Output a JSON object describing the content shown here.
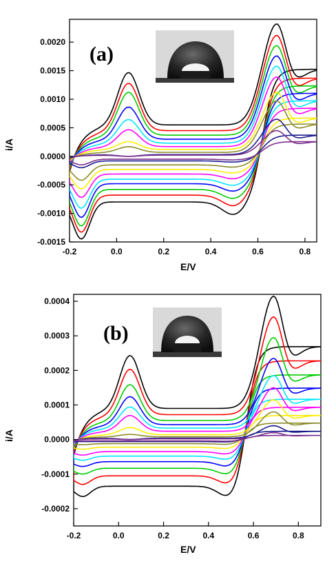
{
  "chart_data": [
    {
      "type": "line",
      "panel_label": "(a)",
      "xlabel": "E/V",
      "ylabel": "i/A",
      "xlim": [
        -0.2,
        0.85
      ],
      "ylim": [
        -0.0015,
        0.0024
      ],
      "x_ticks": [
        -0.2,
        0.0,
        0.2,
        0.4,
        0.6,
        0.8
      ],
      "x_tick_labels": [
        "-0.2",
        "0.0",
        "0.2",
        "0.4",
        "0.6",
        "0.8"
      ],
      "y_ticks": [
        -0.0015,
        -0.001,
        -0.0005,
        0.0,
        0.0005,
        0.001,
        0.0015,
        0.002
      ],
      "y_tick_labels": [
        "-0.0015",
        "-0.0010",
        "-0.0005",
        "0.0000",
        "0.0005",
        "0.0010",
        "0.0015",
        "0.0020"
      ],
      "inset": "water-droplet-photo",
      "series": [
        {
          "color": "#000000",
          "anodic_peak_1": 0.00148,
          "anodic_peak_2": 0.00232,
          "cathodic_peak": -0.00145,
          "baseline_upper": 0.00055,
          "baseline_lower": -0.0008
        },
        {
          "color": "#ff0000",
          "anodic_peak_1": 0.00129,
          "anodic_peak_2": 0.00212,
          "cathodic_peak": -0.00133,
          "baseline_upper": 0.00045,
          "baseline_lower": -0.00068
        },
        {
          "color": "#00cc00",
          "anodic_peak_1": 0.00113,
          "anodic_peak_2": 0.00194,
          "cathodic_peak": -0.00122,
          "baseline_upper": 0.00037,
          "baseline_lower": -0.00058
        },
        {
          "color": "#0000ff",
          "anodic_peak_1": 0.00087,
          "anodic_peak_2": 0.00176,
          "cathodic_peak": -0.00107,
          "baseline_upper": 0.0003,
          "baseline_lower": -0.00048
        },
        {
          "color": "#00e5ff",
          "anodic_peak_1": 0.00065,
          "anodic_peak_2": 0.00158,
          "cathodic_peak": -0.00091,
          "baseline_upper": 0.00023,
          "baseline_lower": -0.0004
        },
        {
          "color": "#ff00ff",
          "anodic_peak_1": 0.00047,
          "anodic_peak_2": 0.00139,
          "cathodic_peak": -0.00072,
          "baseline_upper": 0.00017,
          "baseline_lower": -0.00031
        },
        {
          "color": "#ffee00",
          "anodic_peak_1": 0.00026,
          "anodic_peak_2": 0.00112,
          "cathodic_peak": -0.00057,
          "baseline_upper": 0.00012,
          "baseline_lower": -0.00023
        },
        {
          "color": "#8b8b2a",
          "anodic_peak_1": 0.00017,
          "anodic_peak_2": 0.00097,
          "cathodic_peak": -0.00042,
          "baseline_upper": 7e-05,
          "baseline_lower": -0.00015
        },
        {
          "color": "#1a1a8c",
          "anodic_peak_1": 0.0,
          "anodic_peak_2": 0.00065,
          "cathodic_peak": -0.0002,
          "baseline_upper": 3e-05,
          "baseline_lower": -8e-05
        },
        {
          "color": "#7a2d8c",
          "anodic_peak_1": 0.0,
          "anodic_peak_2": 0.00045,
          "cathodic_peak": -0.00015,
          "baseline_upper": 2e-05,
          "baseline_lower": -5e-05
        }
      ]
    },
    {
      "type": "line",
      "panel_label": "(b)",
      "xlabel": "E/V",
      "ylabel": "i/A",
      "xlim": [
        -0.2,
        0.9
      ],
      "ylim": [
        -0.00025,
        0.00042
      ],
      "x_ticks": [
        -0.2,
        0.0,
        0.2,
        0.4,
        0.6,
        0.8
      ],
      "x_tick_labels": [
        "-0.2",
        "0.0",
        "0.2",
        "0.4",
        "0.6",
        "0.8"
      ],
      "y_ticks": [
        -0.0002,
        -0.0001,
        0.0,
        0.0001,
        0.0002,
        0.0003,
        0.0004
      ],
      "y_tick_labels": [
        "-0.0002",
        "-0.0001",
        "0.0000",
        "0.0001",
        "0.0002",
        "0.0003",
        "0.0004"
      ],
      "inset": "water-droplet-photo",
      "series": [
        {
          "color": "#000000",
          "anodic_peak_1": 0.000245,
          "anodic_peak_2": 0.000415,
          "cathodic_peak": -0.000165,
          "baseline_upper": 9e-05,
          "baseline_lower": -0.000135
        },
        {
          "color": "#ff0000",
          "anodic_peak_1": 0.000205,
          "anodic_peak_2": 0.000355,
          "cathodic_peak": -0.00013,
          "baseline_upper": 7.2e-05,
          "baseline_lower": -0.000105
        },
        {
          "color": "#00cc00",
          "anodic_peak_1": 0.00016,
          "anodic_peak_2": 0.000295,
          "cathodic_peak": -0.0001,
          "baseline_upper": 5.5e-05,
          "baseline_lower": -8.3e-05
        },
        {
          "color": "#0000ff",
          "anodic_peak_1": 0.000125,
          "anodic_peak_2": 0.000235,
          "cathodic_peak": -7.8e-05,
          "baseline_upper": 4.3e-05,
          "baseline_lower": -6.4e-05
        },
        {
          "color": "#00e5ff",
          "anodic_peak_1": 9.5e-05,
          "anodic_peak_2": 0.000185,
          "cathodic_peak": -6e-05,
          "baseline_upper": 3.3e-05,
          "baseline_lower": -4.8e-05
        },
        {
          "color": "#ff00ff",
          "anodic_peak_1": 7e-05,
          "anodic_peak_2": 0.00015,
          "cathodic_peak": -4.5e-05,
          "baseline_upper": 2.4e-05,
          "baseline_lower": -3.5e-05
        },
        {
          "color": "#ffee00",
          "anodic_peak_1": 3.5e-05,
          "anodic_peak_2": 0.000115,
          "cathodic_peak": -2.8e-05,
          "baseline_upper": 1.4e-05,
          "baseline_lower": -2.2e-05
        },
        {
          "color": "#8b8b2a",
          "anodic_peak_1": 1.5e-05,
          "anodic_peak_2": 8e-05,
          "cathodic_peak": -1.5e-05,
          "baseline_upper": 8e-06,
          "baseline_lower": -1.2e-05
        },
        {
          "color": "#1a1a8c",
          "anodic_peak_1": 0.0,
          "anodic_peak_2": 4e-05,
          "cathodic_peak": -6e-06,
          "baseline_upper": 4e-06,
          "baseline_lower": -6e-06
        },
        {
          "color": "#7a2d8c",
          "anodic_peak_1": 0.0,
          "anodic_peak_2": 2e-05,
          "cathodic_peak": -4e-06,
          "baseline_upper": 2e-06,
          "baseline_lower": -4e-06
        }
      ]
    }
  ]
}
